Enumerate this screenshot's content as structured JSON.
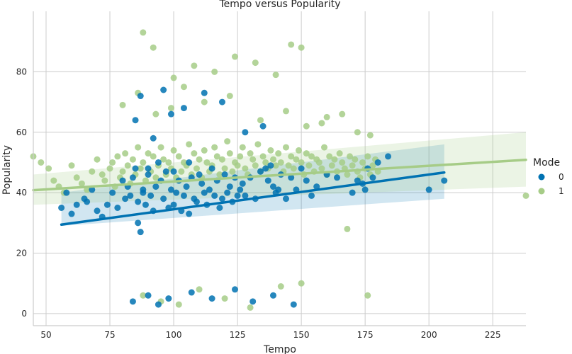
{
  "chart_data": {
    "type": "scatter",
    "title": "Tempo versus Popularity",
    "xlabel": "Tempo",
    "ylabel": "Popularity",
    "xlim": [
      45,
      238
    ],
    "ylim": [
      -4,
      100
    ],
    "xticks": [
      50,
      75,
      100,
      125,
      150,
      175,
      200,
      225
    ],
    "yticks": [
      0,
      20,
      40,
      60,
      80
    ],
    "grid": true,
    "legend": {
      "title": "Mode",
      "placement": "right",
      "entries": [
        "0",
        "1"
      ]
    },
    "series": [
      {
        "name": "0",
        "color": "#0072b2",
        "regression": {
          "x_range": [
            56,
            206
          ],
          "intercept": 23.0,
          "slope": 0.115,
          "ci_low": [
            29,
            38
          ],
          "ci_high": [
            40,
            56
          ]
        },
        "x": [
          56,
          58,
          60,
          62,
          65,
          66,
          68,
          70,
          72,
          74,
          76,
          78,
          80,
          81,
          82,
          83,
          84,
          85,
          86,
          86,
          87,
          88,
          88,
          89,
          90,
          90,
          91,
          92,
          93,
          94,
          95,
          96,
          97,
          98,
          99,
          100,
          100,
          101,
          102,
          103,
          104,
          105,
          106,
          106,
          107,
          108,
          109,
          110,
          111,
          112,
          113,
          114,
          115,
          116,
          117,
          118,
          119,
          120,
          121,
          122,
          123,
          124,
          125,
          126,
          127,
          128,
          130,
          132,
          134,
          136,
          137,
          138,
          139,
          140,
          141,
          142,
          144,
          146,
          148,
          150,
          152,
          154,
          156,
          160,
          164,
          170,
          172,
          174,
          175,
          176,
          178,
          180,
          184,
          200,
          206,
          96,
          99,
          87,
          85,
          92,
          104,
          112,
          119,
          128,
          135,
          84,
          90,
          94,
          98,
          107,
          115,
          124,
          131,
          139,
          147
        ],
        "y": [
          35,
          40,
          33,
          36,
          38,
          37,
          41,
          34,
          32,
          36,
          40,
          35,
          44,
          38,
          42,
          39,
          45,
          48,
          37,
          30,
          27,
          40,
          41,
          36,
          46,
          48,
          39,
          34,
          42,
          50,
          44,
          38,
          47,
          35,
          41,
          36,
          47,
          40,
          44,
          34,
          39,
          42,
          50,
          33,
          45,
          38,
          37,
          46,
          43,
          40,
          36,
          41,
          48,
          39,
          44,
          35,
          38,
          46,
          40,
          42,
          37,
          45,
          39,
          41,
          43,
          39,
          45,
          38,
          47,
          48,
          44,
          49,
          42,
          40,
          41,
          46,
          38,
          45,
          41,
          48,
          44,
          39,
          42,
          46,
          45,
          40,
          44,
          43,
          41,
          48,
          45,
          50,
          52,
          41,
          44,
          74,
          66,
          72,
          64,
          58,
          68,
          73,
          70,
          60,
          62,
          4,
          6,
          3,
          5,
          7,
          5,
          8,
          4,
          6,
          3
        ],
        "size": 7
      },
      {
        "name": "1",
        "color": "#a6cc87",
        "regression": {
          "x_range": [
            45,
            238
          ],
          "intercept": 38.5,
          "slope": 0.052,
          "ci_low": [
            36,
            42
          ],
          "ci_high": [
            46,
            60
          ]
        },
        "x": [
          45,
          48,
          51,
          53,
          55,
          57,
          60,
          62,
          64,
          66,
          68,
          70,
          72,
          73,
          75,
          76,
          77,
          78,
          79,
          80,
          81,
          82,
          83,
          84,
          85,
          86,
          87,
          88,
          89,
          90,
          91,
          92,
          93,
          94,
          95,
          96,
          97,
          98,
          99,
          100,
          101,
          102,
          103,
          104,
          105,
          106,
          107,
          108,
          109,
          110,
          111,
          112,
          113,
          114,
          115,
          116,
          117,
          118,
          119,
          120,
          121,
          122,
          123,
          124,
          125,
          126,
          127,
          128,
          129,
          130,
          131,
          132,
          133,
          134,
          135,
          136,
          137,
          138,
          139,
          140,
          141,
          142,
          143,
          144,
          145,
          146,
          147,
          148,
          149,
          150,
          151,
          152,
          153,
          154,
          155,
          156,
          157,
          158,
          159,
          160,
          161,
          162,
          163,
          164,
          165,
          166,
          167,
          168,
          169,
          170,
          171,
          172,
          173,
          174,
          175,
          176,
          177,
          178,
          179,
          180,
          238,
          88,
          92,
          100,
          108,
          116,
          124,
          132,
          140,
          146,
          150,
          160,
          172,
          88,
          95,
          102,
          110,
          120,
          130,
          142,
          150,
          168,
          176,
          80,
          86,
          93,
          99,
          104,
          112,
          122,
          134,
          144,
          152,
          158,
          166,
          177
        ],
        "y": [
          52,
          50,
          48,
          44,
          42,
          40,
          49,
          45,
          43,
          41,
          47,
          51,
          46,
          44,
          48,
          50,
          42,
          52,
          45,
          47,
          53,
          49,
          43,
          51,
          46,
          55,
          48,
          50,
          44,
          53,
          47,
          52,
          45,
          49,
          55,
          51,
          46,
          50,
          48,
          54,
          45,
          52,
          47,
          50,
          49,
          56,
          46,
          53,
          48,
          51,
          45,
          54,
          50,
          47,
          49,
          55,
          52,
          46,
          51,
          48,
          57,
          53,
          47,
          50,
          49,
          52,
          55,
          48,
          46,
          53,
          51,
          49,
          56,
          47,
          52,
          50,
          48,
          54,
          51,
          49,
          53,
          50,
          47,
          55,
          49,
          52,
          48,
          51,
          54,
          50,
          46,
          53,
          49,
          52,
          47,
          51,
          50,
          48,
          55,
          46,
          52,
          49,
          51,
          47,
          53,
          50,
          48,
          46,
          52,
          49,
          51,
          47,
          45,
          50,
          48,
          52,
          46,
          49,
          51,
          47,
          39,
          93,
          88,
          78,
          82,
          80,
          85,
          83,
          79,
          89,
          88,
          65,
          60,
          6,
          4,
          3,
          8,
          5,
          2,
          9,
          10,
          28,
          6,
          69,
          73,
          66,
          68,
          75,
          70,
          72,
          64,
          67,
          62,
          63,
          66,
          59
        ],
        "size": 7
      }
    ]
  }
}
